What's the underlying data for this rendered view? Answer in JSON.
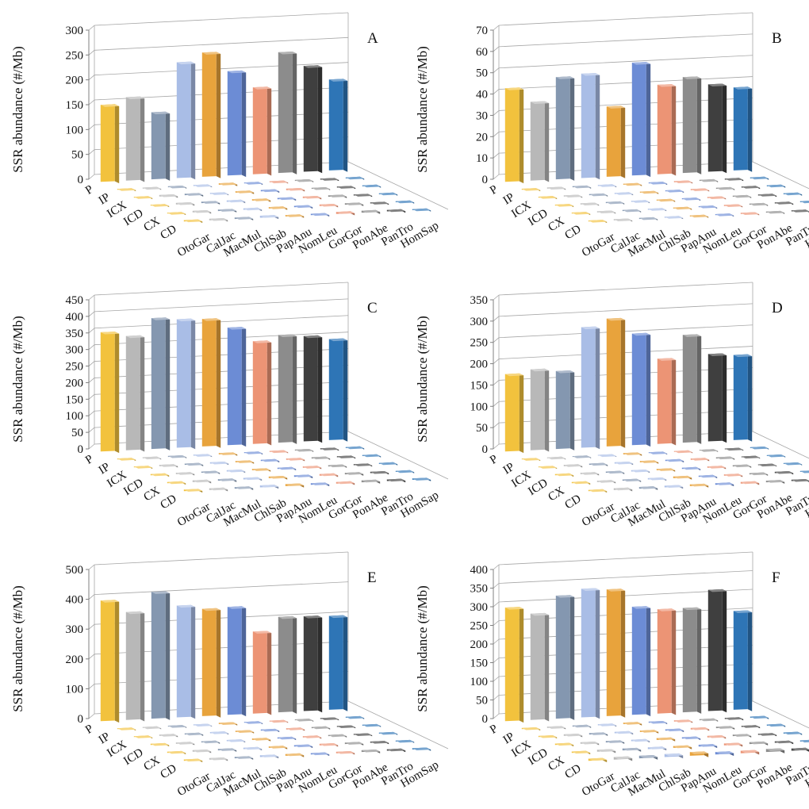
{
  "chart_data": [
    {
      "type": "bar",
      "panel": "A",
      "ylabel": "SSR abundance (#/Mb)",
      "yticks": [
        0,
        50,
        100,
        150,
        200,
        250,
        300
      ],
      "ylim": [
        0,
        300
      ],
      "series": [
        "P",
        "IP",
        "ICX",
        "ICD",
        "CX",
        "CD"
      ],
      "categories": [
        "OtoGar",
        "CalJac",
        "MacMul",
        "ChlSab",
        "PapAnu",
        "NomLeu",
        "GorGor",
        "PonAbe",
        "PanTro",
        "HomSap"
      ],
      "values": [
        [
          155,
          168,
          135,
          233,
          250,
          210,
          175,
          243,
          213,
          183
        ],
        [
          2,
          2,
          2,
          2,
          3,
          2,
          2,
          2,
          2,
          2
        ],
        [
          2,
          3,
          3,
          2,
          3,
          3,
          3,
          2,
          2,
          2
        ],
        [
          2,
          3,
          3,
          3,
          3,
          3,
          3,
          3,
          2,
          2
        ],
        [
          2,
          3,
          3,
          3,
          3,
          3,
          3,
          3,
          2,
          2
        ],
        [
          3,
          3,
          3,
          4,
          3,
          3,
          4,
          4,
          3,
          2
        ]
      ]
    },
    {
      "type": "bar",
      "panel": "B",
      "ylabel": "SSR abundance (#/Mb)",
      "yticks": [
        0,
        10,
        20,
        30,
        40,
        50,
        60,
        70
      ],
      "ylim": [
        0,
        70
      ],
      "series": [
        "P",
        "IP",
        "ICX",
        "ICD",
        "CX",
        "CD"
      ],
      "categories": [
        "OtoGar",
        "CalJac",
        "MacMul",
        "ChlSab",
        "PapAnu",
        "NomLeu",
        "GorGor",
        "PonAbe",
        "PanTro",
        "HomSap"
      ],
      "values": [
        [
          44,
          37,
          48,
          49,
          33,
          53,
          42,
          45,
          41,
          39
        ],
        [
          0.5,
          0.5,
          0.5,
          0.5,
          0.5,
          0.5,
          0.5,
          0.5,
          0.5,
          0.5
        ],
        [
          0.5,
          0.5,
          0.5,
          0.5,
          0.5,
          0.5,
          0.5,
          0.5,
          0.5,
          0.5
        ],
        [
          0.5,
          0.5,
          0.5,
          0.5,
          0.5,
          0.5,
          0.5,
          0.5,
          0.5,
          0.5
        ],
        [
          0.5,
          0.5,
          0.5,
          0.5,
          0.5,
          0.5,
          0.5,
          0.5,
          0.5,
          0.5
        ],
        [
          0.5,
          0.5,
          0.5,
          0.5,
          0.5,
          0.5,
          0.5,
          0.5,
          0.5,
          0.5
        ]
      ]
    },
    {
      "type": "bar",
      "panel": "C",
      "ylabel": "SSR abundance (#/Mb)",
      "yticks": [
        0,
        50,
        100,
        150,
        200,
        250,
        300,
        350,
        400,
        450
      ],
      "ylim": [
        0,
        450
      ],
      "series": [
        "P",
        "IP",
        "ICX",
        "ICD",
        "CX",
        "CD"
      ],
      "categories": [
        "OtoGar",
        "CalJac",
        "MacMul",
        "ChlSab",
        "PapAnu",
        "NomLeu",
        "GorGor",
        "PonAbe",
        "PanTro",
        "HomSap"
      ],
      "values": [
        [
          360,
          345,
          395,
          388,
          385,
          355,
          310,
          325,
          318,
          305
        ],
        [
          3,
          3,
          3,
          3,
          4,
          3,
          3,
          3,
          3,
          3
        ],
        [
          3,
          4,
          4,
          4,
          4,
          4,
          4,
          4,
          3,
          3
        ],
        [
          4,
          4,
          4,
          4,
          4,
          4,
          4,
          4,
          3,
          3
        ],
        [
          4,
          5,
          5,
          5,
          5,
          5,
          5,
          5,
          4,
          3
        ],
        [
          5,
          5,
          5,
          6,
          6,
          5,
          5,
          6,
          5,
          4
        ]
      ]
    },
    {
      "type": "bar",
      "panel": "D",
      "ylabel": "SSR abundance (#/Mb)",
      "yticks": [
        0,
        50,
        100,
        150,
        200,
        250,
        300,
        350
      ],
      "ylim": [
        0,
        350
      ],
      "series": [
        "P",
        "IP",
        "ICX",
        "ICD",
        "CX",
        "CD"
      ],
      "categories": [
        "OtoGar",
        "CalJac",
        "MacMul",
        "ChlSab",
        "PapAnu",
        "NomLeu",
        "GorGor",
        "PonAbe",
        "PanTro",
        "HomSap"
      ],
      "values": [
        [
          182,
          190,
          183,
          283,
          300,
          262,
          200,
          253,
          205,
          200
        ],
        [
          2,
          2,
          2,
          2,
          3,
          2,
          2,
          2,
          2,
          2
        ],
        [
          2,
          3,
          3,
          3,
          3,
          3,
          3,
          3,
          2,
          2
        ],
        [
          3,
          3,
          3,
          3,
          3,
          3,
          3,
          3,
          2,
          2
        ],
        [
          3,
          3,
          3,
          3,
          4,
          3,
          3,
          3,
          3,
          2
        ],
        [
          3,
          4,
          4,
          4,
          4,
          4,
          4,
          4,
          3,
          3
        ]
      ]
    },
    {
      "type": "bar",
      "panel": "E",
      "ylabel": "SSR abundance (#/Mb)",
      "yticks": [
        0,
        100,
        200,
        300,
        400,
        500
      ],
      "ylim": [
        0,
        500
      ],
      "series": [
        "P",
        "IP",
        "ICX",
        "ICD",
        "CX",
        "CD"
      ],
      "categories": [
        "OtoGar",
        "CalJac",
        "MacMul",
        "ChlSab",
        "PapAnu",
        "NomLeu",
        "GorGor",
        "PonAbe",
        "PanTro",
        "HomSap"
      ],
      "values": [
        [
          405,
          362,
          425,
          375,
          360,
          362,
          275,
          320,
          318,
          315
        ],
        [
          3,
          3,
          3,
          3,
          4,
          3,
          3,
          3,
          3,
          3
        ],
        [
          3,
          4,
          4,
          4,
          4,
          4,
          4,
          4,
          3,
          3
        ],
        [
          4,
          4,
          4,
          4,
          5,
          4,
          4,
          4,
          3,
          3
        ],
        [
          4,
          5,
          5,
          5,
          5,
          5,
          5,
          5,
          4,
          3
        ],
        [
          5,
          5,
          5,
          6,
          6,
          5,
          5,
          6,
          5,
          4
        ]
      ]
    },
    {
      "type": "bar",
      "panel": "F",
      "ylabel": "SSR abundance (#/Mb)",
      "yticks": [
        0,
        50,
        100,
        150,
        200,
        250,
        300,
        350,
        400
      ],
      "ylim": [
        0,
        400
      ],
      "series": [
        "P",
        "IP",
        "ICX",
        "ICD",
        "CX",
        "CD"
      ],
      "categories": [
        "OtoGar",
        "CalJac",
        "MacMul",
        "ChlSab",
        "PapAnu",
        "NomLeu",
        "GorGor",
        "PonAbe",
        "PanTro",
        "HomSap"
      ],
      "values": [
        [
          305,
          285,
          330,
          345,
          340,
          290,
          280,
          280,
          325,
          265
        ],
        [
          3,
          3,
          3,
          3,
          4,
          3,
          3,
          3,
          3,
          3
        ],
        [
          3,
          4,
          4,
          4,
          4,
          4,
          4,
          4,
          3,
          3
        ],
        [
          4,
          4,
          4,
          4,
          5,
          4,
          4,
          4,
          3,
          3
        ],
        [
          4,
          5,
          5,
          5,
          5,
          5,
          5,
          5,
          4,
          3
        ],
        [
          6,
          7,
          7,
          8,
          10,
          7,
          7,
          8,
          6,
          5
        ]
      ]
    }
  ],
  "colors": [
    "#f2c23d",
    "#b8b8b8",
    "#8497b0",
    "#a9bde6",
    "#e8a33c",
    "#6c8cd5",
    "#ec9475",
    "#8c8c8c",
    "#3f3f3f",
    "#2e75b6"
  ]
}
